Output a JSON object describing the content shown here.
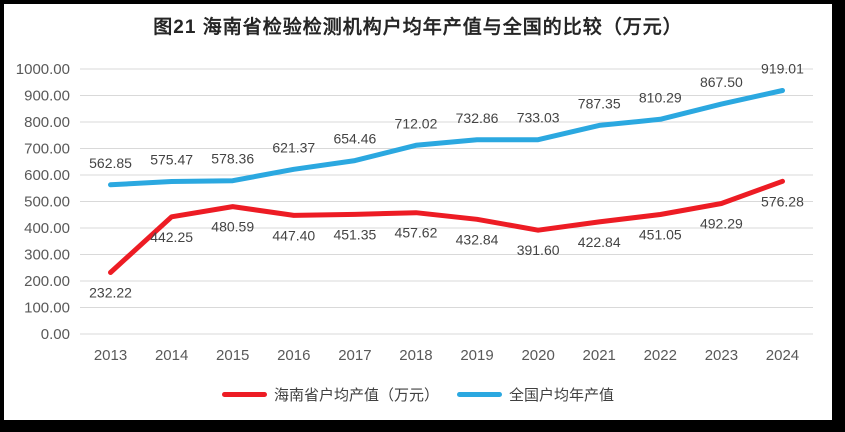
{
  "title": "图21  海南省检验检测机构户均年产值与全国的比较（万元）",
  "colors": {
    "hainan_line": "#ED1C24",
    "national_line": "#2BA8E0",
    "gridline": "#D9D9D9",
    "axis_text": "#595959",
    "data_label_text": "#444444",
    "title_text": "#262626",
    "frame": "#000000",
    "background": "#FFFFFF"
  },
  "chart_data": {
    "type": "line",
    "title": "图21  海南省检验检测机构户均年产值与全国的比较（万元）",
    "categories": [
      "2013",
      "2014",
      "2015",
      "2016",
      "2017",
      "2018",
      "2019",
      "2020",
      "2021",
      "2022",
      "2023",
      "2024"
    ],
    "series": [
      {
        "name": "海南省户均产值（万元）",
        "color": "#ED1C24",
        "label_position": "below",
        "values": [
          232.22,
          442.25,
          480.59,
          447.4,
          451.35,
          457.62,
          432.84,
          391.6,
          422.84,
          451.05,
          492.29,
          576.28
        ]
      },
      {
        "name": "全国户均年产值",
        "color": "#2BA8E0",
        "label_position": "above",
        "values": [
          562.85,
          575.47,
          578.36,
          621.37,
          654.46,
          712.02,
          732.86,
          733.03,
          787.35,
          810.29,
          867.5,
          919.01
        ]
      }
    ],
    "ylim": [
      0,
      1000
    ],
    "ytick_step": 100,
    "ytick_labels": [
      "0.00",
      "100.00",
      "200.00",
      "300.00",
      "400.00",
      "500.00",
      "600.00",
      "700.00",
      "800.00",
      "900.00",
      "1000.00"
    ],
    "xlabel": "",
    "ylabel": "",
    "grid": true,
    "legend_position": "bottom",
    "data_labels_shown": true
  }
}
